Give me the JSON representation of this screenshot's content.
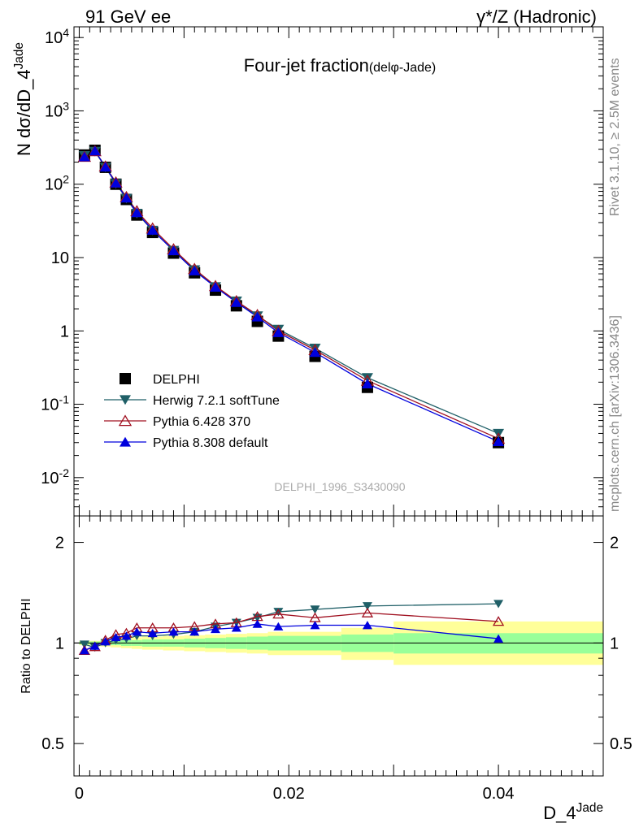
{
  "header": {
    "left": "91 GeV ee",
    "right": "γ*/Z (Hadronic)"
  },
  "side_labels": {
    "rivet": "Rivet 3.1.10, ≥ 2.5M events",
    "mcplots": "mcplots.cern.ch [arXiv:1306.3436]"
  },
  "chart_data": [
    {
      "type": "line",
      "title": "Four-jet fraction",
      "subtitle": "(delφ-Jade)",
      "ylabel": "N dσ/dD_4^Jade",
      "yscale": "log",
      "ylim": [
        0.003,
        14000
      ],
      "xlim": [
        -0.0005,
        0.05
      ],
      "watermark": "DELPHI_1996_S3430090",
      "y_ticks": [
        {
          "value": 0.01,
          "label": "10^-2"
        },
        {
          "value": 0.1,
          "label": "10^-1"
        },
        {
          "value": 1,
          "label": "1"
        },
        {
          "value": 10,
          "label": "10"
        },
        {
          "value": 100,
          "label": "10^2"
        },
        {
          "value": 1000,
          "label": "10^3"
        },
        {
          "value": 10000,
          "label": "10^4"
        }
      ],
      "legend_position": "lower-left",
      "series": [
        {
          "name": "DELPHI",
          "color": "#000000",
          "marker": "square",
          "x": [
            0.0005,
            0.0015,
            0.0025,
            0.0035,
            0.0045,
            0.0055,
            0.007,
            0.009,
            0.011,
            0.013,
            0.015,
            0.017,
            0.019,
            0.0225,
            0.0275,
            0.04
          ],
          "y": [
            250,
            290,
            170,
            100,
            62,
            38,
            22,
            11.5,
            6.2,
            3.6,
            2.2,
            1.35,
            0.85,
            0.45,
            0.17,
            0.03
          ]
        },
        {
          "name": "Herwig 7.2.1 softTune",
          "color": "#1f5f67",
          "marker": "triangle-down",
          "x": [
            0.0005,
            0.0015,
            0.0025,
            0.0035,
            0.0045,
            0.0055,
            0.007,
            0.009,
            0.011,
            0.013,
            0.015,
            0.017,
            0.019,
            0.0225,
            0.0275,
            0.04
          ],
          "y": [
            245,
            280,
            170,
            102,
            64,
            40,
            23.5,
            12.5,
            6.8,
            4.0,
            2.55,
            1.6,
            1.05,
            0.58,
            0.23,
            0.04
          ]
        },
        {
          "name": "Pythia 6.428 370",
          "color": "#a01020",
          "marker": "triangle-up-open",
          "x": [
            0.0005,
            0.0015,
            0.0025,
            0.0035,
            0.0045,
            0.0055,
            0.007,
            0.009,
            0.011,
            0.013,
            0.015,
            0.017,
            0.019,
            0.0225,
            0.0275,
            0.04
          ],
          "y": [
            237,
            283,
            175,
            106,
            67,
            43,
            25,
            13,
            7.0,
            4.1,
            2.55,
            1.65,
            1.0,
            0.55,
            0.21,
            0.034
          ]
        },
        {
          "name": "Pythia 8.308 default",
          "color": "#0000dd",
          "marker": "triangle-up",
          "x": [
            0.0005,
            0.0015,
            0.0025,
            0.0035,
            0.0045,
            0.0055,
            0.007,
            0.009,
            0.011,
            0.013,
            0.015,
            0.017,
            0.019,
            0.0225,
            0.0275,
            0.04
          ],
          "y": [
            237,
            285,
            172,
            104,
            65,
            41,
            23.6,
            12.4,
            6.6,
            3.95,
            2.45,
            1.55,
            0.95,
            0.51,
            0.19,
            0.031
          ]
        }
      ]
    },
    {
      "type": "line",
      "ylabel": "Ratio to DELPHI",
      "xlabel": "D_4^Jade",
      "yscale": "log",
      "ylim": [
        0.4,
        2.4
      ],
      "xlim": [
        -0.0005,
        0.05
      ],
      "y_ticks": [
        {
          "value": 0.5,
          "label": "0.5"
        },
        {
          "value": 1,
          "label": "1"
        },
        {
          "value": 2,
          "label": "2"
        }
      ],
      "x_ticks": [
        {
          "value": 0,
          "label": "0"
        },
        {
          "value": 0.02,
          "label": "0.02"
        },
        {
          "value": 0.04,
          "label": "0.04"
        }
      ],
      "uncertainty_bands": [
        {
          "x0": 0.0,
          "x1": 0.001,
          "inner": [
            0.99,
            1.01
          ],
          "outer": [
            0.985,
            1.015
          ]
        },
        {
          "x0": 0.001,
          "x1": 0.002,
          "inner": [
            0.99,
            1.01
          ],
          "outer": [
            0.985,
            1.015
          ]
        },
        {
          "x0": 0.002,
          "x1": 0.003,
          "inner": [
            0.985,
            1.015
          ],
          "outer": [
            0.975,
            1.025
          ]
        },
        {
          "x0": 0.003,
          "x1": 0.004,
          "inner": [
            0.985,
            1.015
          ],
          "outer": [
            0.97,
            1.03
          ]
        },
        {
          "x0": 0.004,
          "x1": 0.005,
          "inner": [
            0.98,
            1.02
          ],
          "outer": [
            0.965,
            1.035
          ]
        },
        {
          "x0": 0.005,
          "x1": 0.006,
          "inner": [
            0.98,
            1.02
          ],
          "outer": [
            0.96,
            1.04
          ]
        },
        {
          "x0": 0.006,
          "x1": 0.008,
          "inner": [
            0.975,
            1.025
          ],
          "outer": [
            0.955,
            1.045
          ]
        },
        {
          "x0": 0.008,
          "x1": 0.01,
          "inner": [
            0.975,
            1.025
          ],
          "outer": [
            0.95,
            1.05
          ]
        },
        {
          "x0": 0.01,
          "x1": 0.012,
          "inner": [
            0.97,
            1.03
          ],
          "outer": [
            0.945,
            1.055
          ]
        },
        {
          "x0": 0.012,
          "x1": 0.014,
          "inner": [
            0.965,
            1.035
          ],
          "outer": [
            0.94,
            1.06
          ]
        },
        {
          "x0": 0.014,
          "x1": 0.016,
          "inner": [
            0.96,
            1.04
          ],
          "outer": [
            0.935,
            1.065
          ]
        },
        {
          "x0": 0.016,
          "x1": 0.018,
          "inner": [
            0.955,
            1.045
          ],
          "outer": [
            0.93,
            1.07
          ]
        },
        {
          "x0": 0.018,
          "x1": 0.025,
          "inner": [
            0.95,
            1.05
          ],
          "outer": [
            0.92,
            1.08
          ]
        },
        {
          "x0": 0.025,
          "x1": 0.03,
          "inner": [
            0.94,
            1.06
          ],
          "outer": [
            0.89,
            1.11
          ]
        },
        {
          "x0": 0.03,
          "x1": 0.05,
          "inner": [
            0.93,
            1.07
          ],
          "outer": [
            0.86,
            1.16
          ]
        }
      ],
      "series": [
        {
          "name": "Herwig 7.2.1 softTune",
          "x": [
            0.0005,
            0.0015,
            0.0025,
            0.0035,
            0.0045,
            0.0055,
            0.007,
            0.009,
            0.011,
            0.013,
            0.015,
            0.017,
            0.019,
            0.0225,
            0.0275,
            0.04
          ],
          "y": [
            0.99,
            0.97,
            1.0,
            1.02,
            1.03,
            1.05,
            1.05,
            1.06,
            1.08,
            1.12,
            1.15,
            1.19,
            1.24,
            1.26,
            1.29,
            1.31
          ]
        },
        {
          "name": "Pythia 6.428 370",
          "x": [
            0.0005,
            0.0015,
            0.0025,
            0.0035,
            0.0045,
            0.0055,
            0.007,
            0.009,
            0.011,
            0.013,
            0.015,
            0.017,
            0.019,
            0.0225,
            0.0275,
            0.04
          ],
          "y": [
            0.95,
            0.975,
            1.02,
            1.06,
            1.07,
            1.11,
            1.11,
            1.11,
            1.12,
            1.14,
            1.15,
            1.2,
            1.22,
            1.19,
            1.23,
            1.16
          ]
        },
        {
          "name": "Pythia 8.308 default",
          "x": [
            0.0005,
            0.0015,
            0.0025,
            0.0035,
            0.0045,
            0.0055,
            0.007,
            0.009,
            0.011,
            0.013,
            0.015,
            0.017,
            0.019,
            0.0225,
            0.0275,
            0.04
          ],
          "y": [
            0.95,
            0.98,
            1.01,
            1.04,
            1.05,
            1.08,
            1.07,
            1.08,
            1.08,
            1.1,
            1.11,
            1.14,
            1.12,
            1.13,
            1.13,
            1.03
          ]
        }
      ]
    }
  ]
}
